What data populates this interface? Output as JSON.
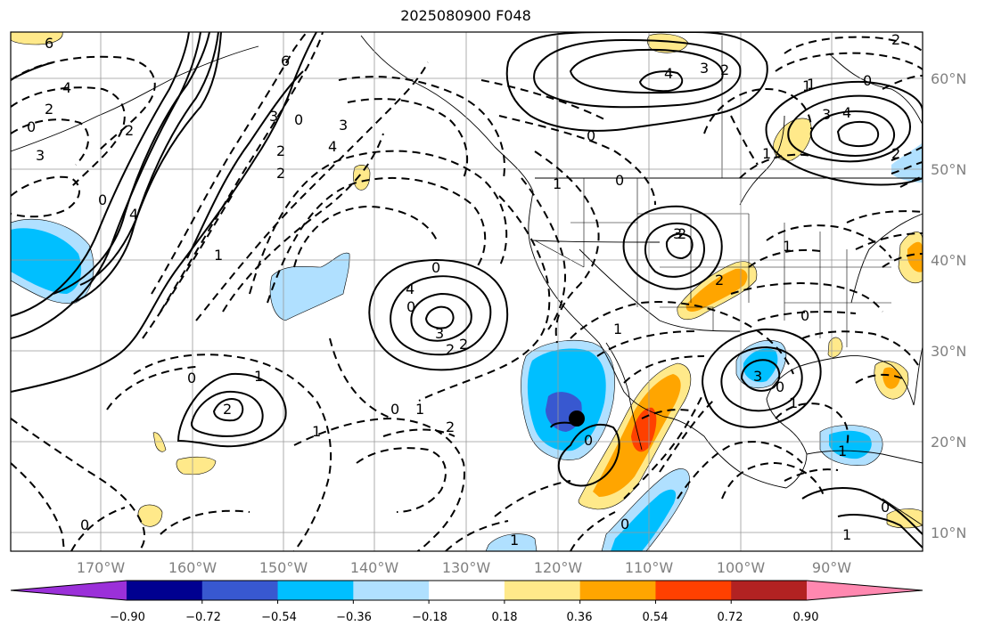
{
  "title": "2025080900 F048",
  "longitude_labels": [
    "170°W",
    "160°W",
    "150°W",
    "140°W",
    "130°W",
    "120°W",
    "110°W",
    "100°W",
    "90°W"
  ],
  "latitude_labels": [
    "60°N",
    "50°N",
    "40°N",
    "30°N",
    "20°N",
    "10°N"
  ],
  "colorbar": {
    "tick_labels": [
      "−0.90",
      "−0.72",
      "−0.54",
      "−0.36",
      "−0.18",
      "0.18",
      "0.36",
      "0.54",
      "0.72",
      "0.90"
    ],
    "colors": [
      "#9b30d9",
      "#000090",
      "#3858d0",
      "#00bfff",
      "#b0e0ff",
      "#ffffff",
      "#ffe98a",
      "#ffa500",
      "#ff4000",
      "#b22222",
      "#ff88b0"
    ]
  },
  "contour_labels": [
    "6",
    "4",
    "2",
    "0",
    "2",
    "4",
    "3",
    "6",
    "3",
    "0",
    "4",
    "3",
    "2",
    "2",
    "0",
    "1",
    "3",
    "0",
    "4",
    "4",
    "3",
    "2",
    "0",
    "1",
    "3",
    "4",
    "2",
    "0",
    "2",
    "1",
    "1",
    "0",
    "1",
    "3",
    "2",
    "2",
    "2",
    "0",
    "1",
    "2",
    "0",
    "0",
    "1",
    "2",
    "1",
    "0",
    "0",
    "1",
    "0",
    "1",
    "3",
    "1",
    "0",
    "2",
    "1",
    "0",
    "1",
    "0",
    "1"
  ],
  "marker": "storm-center"
}
